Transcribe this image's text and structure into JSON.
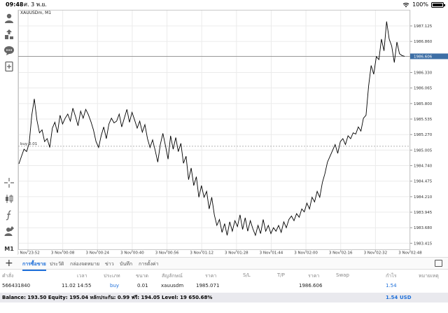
{
  "status_bar": {
    "time": "09:48",
    "date": "ศ. 3 พ.ย.",
    "battery": "100%"
  },
  "chart": {
    "symbol_label": "XAUUSDm, M1",
    "buy_label": "buy 0.01",
    "current_price_tag": "1986.606",
    "colors": {
      "line": "#000000",
      "grid": "#ebebeb",
      "price_tag_bg": "#3d6fa6",
      "order_line": "#9a9a9a"
    }
  },
  "chart_data": {
    "type": "line",
    "symbol": "XAUUSDm",
    "timeframe": "M1",
    "x_labels": [
      "3 Nov 23:52",
      "3 Nov 00:08",
      "3 Nov 00:24",
      "3 Nov 00:40",
      "3 Nov 00:56",
      "3 Nov 01:12",
      "3 Nov 01:28",
      "3 Nov 01:44",
      "3 Nov 02:00",
      "3 Nov 02:16",
      "3 Nov 02:32",
      "3 Nov 02:48"
    ],
    "y_ticks": [
      "1987.125",
      "1986.860",
      "1986.330",
      "1986.065",
      "1985.800",
      "1985.535",
      "1985.270",
      "1985.005",
      "1984.740",
      "1984.475",
      "1984.210",
      "1983.945",
      "1983.680",
      "1983.415"
    ],
    "ylim": [
      1983.3,
      1987.4
    ],
    "current_price": 1986.606,
    "order_price": 1985.071,
    "series": [
      {
        "values": [
          1984.77,
          1984.9,
          1985.02,
          1984.98,
          1985.12,
          1985.6,
          1985.88,
          1985.52,
          1985.3,
          1985.35,
          1985.15,
          1985.2,
          1985.05,
          1985.38,
          1985.48,
          1985.3,
          1985.6,
          1985.45,
          1985.55,
          1985.62,
          1985.5,
          1985.72,
          1985.58,
          1985.42,
          1985.67,
          1985.55,
          1985.7,
          1985.61,
          1985.49,
          1985.35,
          1985.15,
          1985.05,
          1985.25,
          1985.4,
          1985.2,
          1985.45,
          1985.55,
          1985.47,
          1985.5,
          1985.62,
          1985.4,
          1985.55,
          1985.7,
          1985.48,
          1985.65,
          1985.52,
          1985.38,
          1985.5,
          1985.31,
          1985.44,
          1985.2,
          1985.05,
          1985.18,
          1985.0,
          1984.8,
          1985.1,
          1985.29,
          1985.08,
          1984.85,
          1985.25,
          1985.02,
          1985.22,
          1984.98,
          1985.12,
          1984.78,
          1984.9,
          1984.5,
          1984.7,
          1984.4,
          1984.55,
          1984.2,
          1984.4,
          1984.2,
          1984.3,
          1984.0,
          1984.2,
          1983.9,
          1983.72,
          1983.82,
          1983.6,
          1983.75,
          1983.55,
          1983.78,
          1983.62,
          1983.8,
          1983.7,
          1983.9,
          1983.65,
          1983.85,
          1983.62,
          1983.8,
          1983.66,
          1983.55,
          1983.72,
          1983.58,
          1983.82,
          1983.62,
          1983.72,
          1983.58,
          1983.68,
          1983.62,
          1983.72,
          1983.6,
          1983.78,
          1983.68,
          1983.82,
          1983.88,
          1983.8,
          1983.92,
          1983.86,
          1984.0,
          1983.95,
          1984.1,
          1984.0,
          1984.2,
          1984.12,
          1984.3,
          1984.2,
          1984.45,
          1984.6,
          1984.8,
          1984.9,
          1985.0,
          1985.1,
          1984.95,
          1985.15,
          1985.2,
          1985.1,
          1985.25,
          1985.2,
          1985.3,
          1985.28,
          1985.4,
          1985.33,
          1985.55,
          1985.6,
          1986.1,
          1986.45,
          1986.3,
          1986.6,
          1986.55,
          1986.9,
          1986.7,
          1987.2,
          1986.9,
          1986.78,
          1986.5,
          1986.85,
          1986.65,
          1986.62,
          1986.606
        ]
      }
    ]
  },
  "toolbar": {
    "items": [
      {
        "name": "account-icon"
      },
      {
        "name": "trade-icon"
      },
      {
        "name": "chat-icon"
      },
      {
        "name": "new-order-icon"
      },
      {
        "name": "crosshair-icon"
      },
      {
        "name": "chart-type-icon"
      },
      {
        "name": "indicators-icon"
      },
      {
        "name": "objects-icon"
      }
    ],
    "timeframe": "M1"
  },
  "tabs": {
    "items": [
      "การซื้อขาย",
      "ประวัติ",
      "กล่องจดหมาย",
      "ข่าว",
      "บันทึก",
      "การตั้งค่า"
    ],
    "active_index": 0
  },
  "table": {
    "headers": [
      "คำสั่ง",
      "เวลา",
      "ประเภท",
      "ขนาด",
      "สัญลักษณ์",
      "ราคา",
      "S/L",
      "T/P",
      "ราคา",
      "Swap",
      "กำไร",
      "หมายเหตุ"
    ],
    "row": {
      "order": "566431840",
      "time": "11.02 14:55",
      "type": "buy",
      "volume": "0.01",
      "symbol": "xauusdm",
      "open_price": "1985.071",
      "sl": "",
      "tp": "",
      "current_price": "1986.606",
      "swap": "",
      "profit": "1.54",
      "comment": ""
    }
  },
  "balance": {
    "text": "Balance: 193.50 Equity: 195.04 หลักประกัน: 0.99 ฟรี: 194.05 Level: 19 650.68%",
    "profit": "1.54",
    "currency": "USD"
  }
}
